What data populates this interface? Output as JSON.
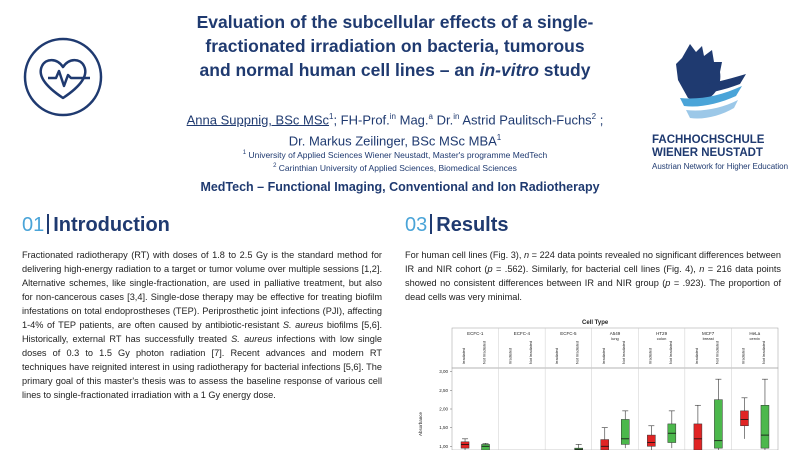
{
  "header": {
    "title_line1": "Evaluation of the subcellular effects of a single-",
    "title_line2": "fractionated irradiation on bacteria, tumorous",
    "title_line3_main": "and normal human cell lines – an ",
    "title_line3_italic": "in-vitro",
    "title_line3_end": " study",
    "author1": "Anna Suppnig, BSc MSc",
    "author1_sup": "1",
    "author2": "; FH-Prof.",
    "author2_sup1": "in",
    "author2_mid": " Mag.",
    "author2_sup2": "a",
    "author2_mid2": " Dr.",
    "author2_sup3": "in",
    "author2_name": " Astrid Paulitsch-Fuchs",
    "author2_sup4": "2",
    "author2_end": " ;",
    "author3": "Dr. Markus Zeilinger, BSc MSc MBA",
    "author3_sup": "1",
    "affil1_sup": "1",
    "affil1": " University of Applied Sciences Wiener Neustadt, Master's programme MedTech",
    "affil2_sup": "2",
    "affil2": " Carinthian University of Applied Sciences, Biomedical Sciences",
    "subtitle": "MedTech – Functional Imaging, Conventional and Ion Radiotherapy"
  },
  "logo": {
    "name_line1": "FACHHOCHSCHULE",
    "name_line2": "WIENER NEUSTADT",
    "tagline": "Austrian Network for Higher Education",
    "heart_icon": "heart-pulse-icon"
  },
  "intro": {
    "num": "01",
    "heading": "Introduction",
    "p1": "Fractionated radiotherapy (RT) with doses of 1.8 to 2.5 Gy is the standard method for delivering high-energy radiation to a target or tumor volume over multiple sessions [1,2]. Alternative schemes, like single-fractionation, are used in palliative treatment, but also for non-cancerous cases [3,4]. Single-dose therapy may be effective for treating biofilm infestations on total endoprostheses (TEP). Periprosthetic joint infections (PJI), affecting 1-4% of TEP patients, are often caused by antibiotic-resistant ",
    "p1_it1": "S. aureus",
    "p1_b": " biofilms [5,6]. Historically, external RT has successfully treated ",
    "p1_it2": "S. aureus",
    "p1_c": " infections with low single doses of 0.3 to 1.5 Gy photon radiation [7]. Recent advances and modern RT techniques have reignited interest in using radiotherapy for bacterial infections [5,6]. The primary goal of this master's thesis was to assess the baseline response of various cell lines to single-fractionated irradiation with a 1 Gy energy dose."
  },
  "results": {
    "num": "03",
    "heading": "Results",
    "t1": "For human cell lines (Fig. 3), ",
    "n1": "n",
    "t2": " = 224 data points revealed no significant differences between IR and NIR cohort (",
    "p1": "p",
    "t3": " = .562). Similarly, for bacterial cell lines (Fig. 4), ",
    "n2": "n",
    "t4": " = 216 data points showed no consistent differences between IR and NIR group (",
    "p2": "p",
    "t5": " = .923). The proportion of dead cells was very minimal."
  },
  "chart_data": {
    "type": "box",
    "title": "Cell Type",
    "ylabel": "Absorbance",
    "yticks": [
      "3,00",
      "2,50",
      "2,00",
      "1,50",
      "1,00"
    ],
    "ylim": [
      0.9,
      3.1
    ],
    "groups": [
      {
        "name": "ECFC-1",
        "sub": ""
      },
      {
        "name": "ECFC-4",
        "sub": ""
      },
      {
        "name": "ECFC-5",
        "sub": ""
      },
      {
        "name": "A549",
        "sub": "lung"
      },
      {
        "name": "HT29",
        "sub": "colon"
      },
      {
        "name": "MCF7",
        "sub": "breast"
      },
      {
        "name": "HeLa",
        "sub": "cervix"
      }
    ],
    "series_labels": [
      "Irradiated",
      "Not Irradiated"
    ],
    "colors": {
      "irradiated": "#e02424",
      "not_irradiated": "#4cb84c"
    },
    "boxes": [
      {
        "group": 0,
        "series": "irradiated",
        "q1": 0.95,
        "med": 1.05,
        "q3": 1.12,
        "min": 0.9,
        "max": 1.2
      },
      {
        "group": 0,
        "series": "not_irradiated",
        "q1": 0.9,
        "med": 1.0,
        "q3": 1.05,
        "min": 0.9,
        "max": 1.08
      },
      {
        "group": 2,
        "series": "not_irradiated",
        "q1": 0.9,
        "med": 0.92,
        "q3": 0.95,
        "min": 0.9,
        "max": 1.05
      },
      {
        "group": 3,
        "series": "irradiated",
        "q1": 0.9,
        "med": 1.0,
        "q3": 1.18,
        "min": 0.9,
        "max": 1.5
      },
      {
        "group": 3,
        "series": "not_irradiated",
        "q1": 1.05,
        "med": 1.2,
        "q3": 1.72,
        "min": 0.95,
        "max": 1.95
      },
      {
        "group": 4,
        "series": "irradiated",
        "q1": 1.0,
        "med": 1.1,
        "q3": 1.3,
        "min": 0.9,
        "max": 1.55
      },
      {
        "group": 4,
        "series": "not_irradiated",
        "q1": 1.1,
        "med": 1.35,
        "q3": 1.6,
        "min": 0.95,
        "max": 1.95
      },
      {
        "group": 5,
        "series": "irradiated",
        "q1": 0.9,
        "med": 1.2,
        "q3": 1.6,
        "min": 0.9,
        "max": 2.1
      },
      {
        "group": 5,
        "series": "not_irradiated",
        "q1": 0.95,
        "med": 1.15,
        "q3": 2.25,
        "min": 0.9,
        "max": 2.8
      },
      {
        "group": 6,
        "series": "irradiated",
        "q1": 1.55,
        "med": 1.72,
        "q3": 1.95,
        "min": 1.2,
        "max": 2.3
      },
      {
        "group": 6,
        "series": "not_irradiated",
        "q1": 0.95,
        "med": 1.3,
        "q3": 2.1,
        "min": 0.9,
        "max": 2.8
      }
    ]
  }
}
